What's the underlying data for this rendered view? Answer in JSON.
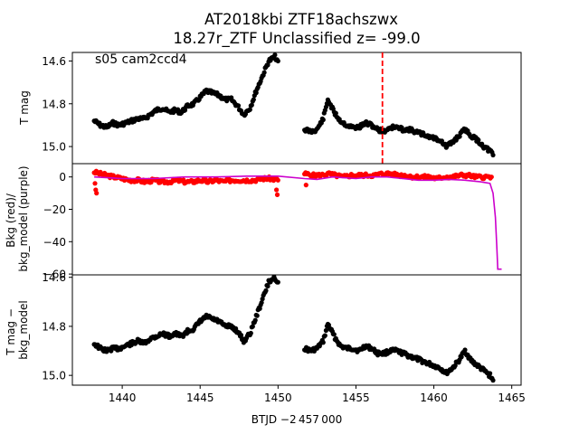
{
  "title_line1": "AT2018kbi  ZTF18achszwx",
  "title_line2": "18.27r_ZTF Unclassified z= -99.0",
  "annotation": "s05 cam2ccd4",
  "xlabel": "BTJD −2 457 000",
  "colors": {
    "points_black": "#000000",
    "points_red": "#ff0000",
    "model_purple": "#cc00cc",
    "marker_red": "#ff0000"
  },
  "chart_data": [
    {
      "type": "scatter",
      "ylabel": "T mag",
      "xlim": [
        1436.8,
        1465.6
      ],
      "ylim": [
        15.08,
        14.56
      ],
      "y_inverted": true,
      "yticks": [
        14.6,
        14.8,
        15.0
      ],
      "ytick_labels": [
        "14.6",
        "14.8",
        "15.0"
      ],
      "vline_x": 1456.7,
      "segment1": [
        [
          1438.2,
          14.88
        ],
        [
          1438.6,
          14.9
        ],
        [
          1439.0,
          14.91
        ],
        [
          1439.4,
          14.89
        ],
        [
          1439.8,
          14.9
        ],
        [
          1440.2,
          14.89
        ],
        [
          1440.6,
          14.88
        ],
        [
          1441.0,
          14.87
        ],
        [
          1441.4,
          14.87
        ],
        [
          1441.8,
          14.85
        ],
        [
          1442.2,
          14.83
        ],
        [
          1442.6,
          14.82
        ],
        [
          1443.0,
          14.84
        ],
        [
          1443.4,
          14.83
        ],
        [
          1443.8,
          14.84
        ],
        [
          1444.2,
          14.81
        ],
        [
          1444.6,
          14.8
        ],
        [
          1445.0,
          14.77
        ],
        [
          1445.4,
          14.74
        ],
        [
          1445.8,
          14.75
        ],
        [
          1446.2,
          14.76
        ],
        [
          1446.6,
          14.78
        ],
        [
          1447.0,
          14.78
        ],
        [
          1447.4,
          14.81
        ],
        [
          1447.8,
          14.85
        ],
        [
          1448.2,
          14.82
        ],
        [
          1448.6,
          14.74
        ],
        [
          1449.0,
          14.67
        ],
        [
          1449.4,
          14.6
        ],
        [
          1449.8,
          14.58
        ],
        [
          1450.0,
          14.6
        ]
      ],
      "segment2": [
        [
          1451.7,
          14.92
        ],
        [
          1452.1,
          14.93
        ],
        [
          1452.5,
          14.92
        ],
        [
          1452.9,
          14.87
        ],
        [
          1453.2,
          14.78
        ],
        [
          1453.6,
          14.84
        ],
        [
          1454.0,
          14.88
        ],
        [
          1454.4,
          14.9
        ],
        [
          1454.8,
          14.91
        ],
        [
          1455.2,
          14.91
        ],
        [
          1455.6,
          14.89
        ],
        [
          1456.0,
          14.9
        ],
        [
          1456.4,
          14.92
        ],
        [
          1456.8,
          14.93
        ],
        [
          1457.2,
          14.91
        ],
        [
          1457.6,
          14.91
        ],
        [
          1458.0,
          14.92
        ],
        [
          1458.4,
          14.92
        ],
        [
          1458.8,
          14.93
        ],
        [
          1459.2,
          14.94
        ],
        [
          1459.6,
          14.95
        ],
        [
          1460.0,
          14.96
        ],
        [
          1460.4,
          14.97
        ],
        [
          1460.8,
          15.0
        ],
        [
          1461.2,
          14.98
        ],
        [
          1461.6,
          14.95
        ],
        [
          1462.0,
          14.92
        ],
        [
          1462.4,
          14.95
        ],
        [
          1462.8,
          14.97
        ],
        [
          1463.2,
          15.0
        ],
        [
          1463.6,
          15.02
        ],
        [
          1463.8,
          15.04
        ]
      ]
    },
    {
      "type": "scatter+line",
      "ylabel": "Bkg (red)/\nbkg_model (purple)",
      "xlim": [
        1436.8,
        1465.6
      ],
      "ylim": [
        -60.5,
        8.2
      ],
      "yticks": [
        0,
        -20,
        -40,
        -60
      ],
      "ytick_labels": [
        "0",
        "−20",
        "−40",
        "−60"
      ],
      "bkg_points": [
        [
          1438.2,
          3
        ],
        [
          1438.6,
          2
        ],
        [
          1439.0,
          1
        ],
        [
          1439.5,
          0
        ],
        [
          1440.0,
          -1
        ],
        [
          1440.5,
          -2
        ],
        [
          1441.0,
          -2
        ],
        [
          1441.5,
          -3
        ],
        [
          1442.0,
          -2
        ],
        [
          1442.5,
          -3
        ],
        [
          1443.0,
          -3
        ],
        [
          1443.5,
          -2
        ],
        [
          1444.0,
          -3
        ],
        [
          1444.5,
          -3
        ],
        [
          1445.0,
          -2
        ],
        [
          1445.5,
          -3
        ],
        [
          1446.0,
          -2
        ],
        [
          1446.5,
          -3
        ],
        [
          1447.0,
          -2
        ],
        [
          1447.5,
          -2
        ],
        [
          1448.0,
          -2
        ],
        [
          1448.5,
          -2
        ],
        [
          1449.0,
          -1
        ],
        [
          1449.5,
          -1
        ],
        [
          1450.0,
          -2
        ],
        [
          1451.7,
          2
        ],
        [
          1452.2,
          1
        ],
        [
          1452.7,
          1
        ],
        [
          1453.2,
          2
        ],
        [
          1453.7,
          1
        ],
        [
          1454.2,
          0
        ],
        [
          1454.7,
          1
        ],
        [
          1455.2,
          1
        ],
        [
          1455.7,
          1
        ],
        [
          1456.2,
          1
        ],
        [
          1456.7,
          2
        ],
        [
          1457.2,
          2
        ],
        [
          1457.7,
          1
        ],
        [
          1458.2,
          1
        ],
        [
          1458.7,
          0
        ],
        [
          1459.2,
          0
        ],
        [
          1459.7,
          0
        ],
        [
          1460.2,
          -1
        ],
        [
          1460.7,
          0
        ],
        [
          1461.2,
          0
        ],
        [
          1461.7,
          1
        ],
        [
          1462.2,
          1
        ],
        [
          1462.7,
          0
        ],
        [
          1463.2,
          0
        ],
        [
          1463.7,
          0
        ]
      ],
      "bkg_outliers": [
        [
          1438.3,
          -8
        ],
        [
          1438.35,
          -10
        ],
        [
          1438.25,
          -4
        ],
        [
          1449.9,
          -8
        ],
        [
          1449.95,
          -11
        ],
        [
          1451.8,
          -5
        ]
      ],
      "model_line": [
        [
          1438.2,
          0
        ],
        [
          1440,
          -1
        ],
        [
          1442,
          -1
        ],
        [
          1444,
          0
        ],
        [
          1446,
          0
        ],
        [
          1448,
          0.5
        ],
        [
          1450,
          0.5
        ],
        [
          1451.7,
          -1
        ],
        [
          1452.5,
          -1.5
        ],
        [
          1453.5,
          0
        ],
        [
          1455,
          -1
        ],
        [
          1456,
          0
        ],
        [
          1457,
          0
        ],
        [
          1458,
          -1
        ],
        [
          1459,
          -2
        ],
        [
          1460,
          -2
        ],
        [
          1461,
          -1.5
        ],
        [
          1462,
          -2
        ],
        [
          1463,
          -3
        ],
        [
          1463.6,
          -4
        ],
        [
          1463.8,
          -10
        ],
        [
          1463.95,
          -25
        ],
        [
          1464.05,
          -45
        ],
        [
          1464.1,
          -57
        ],
        [
          1464.35,
          -57
        ]
      ]
    },
    {
      "type": "scatter",
      "ylabel": "T mag −\nbkg_model",
      "xlim": [
        1436.8,
        1465.6
      ],
      "ylim": [
        15.04,
        14.59
      ],
      "y_inverted": true,
      "yticks": [
        14.6,
        14.8,
        15.0
      ],
      "ytick_labels": [
        "14.6",
        "14.8",
        "15.0"
      ],
      "xticks": [
        1440,
        1445,
        1450,
        1455,
        1460,
        1465
      ],
      "xtick_labels": [
        "1440",
        "1445",
        "1450",
        "1455",
        "1460",
        "1465"
      ],
      "segment1": [
        [
          1438.2,
          14.87
        ],
        [
          1438.6,
          14.89
        ],
        [
          1439.0,
          14.9
        ],
        [
          1439.4,
          14.89
        ],
        [
          1439.8,
          14.89
        ],
        [
          1440.2,
          14.88
        ],
        [
          1440.6,
          14.87
        ],
        [
          1441.0,
          14.86
        ],
        [
          1441.4,
          14.87
        ],
        [
          1441.8,
          14.85
        ],
        [
          1442.2,
          14.84
        ],
        [
          1442.6,
          14.83
        ],
        [
          1443.0,
          14.84
        ],
        [
          1443.4,
          14.83
        ],
        [
          1443.8,
          14.84
        ],
        [
          1444.2,
          14.82
        ],
        [
          1444.6,
          14.81
        ],
        [
          1445.0,
          14.78
        ],
        [
          1445.4,
          14.76
        ],
        [
          1445.8,
          14.77
        ],
        [
          1446.2,
          14.78
        ],
        [
          1446.6,
          14.8
        ],
        [
          1447.0,
          14.8
        ],
        [
          1447.4,
          14.82
        ],
        [
          1447.8,
          14.86
        ],
        [
          1448.2,
          14.83
        ],
        [
          1448.6,
          14.76
        ],
        [
          1449.0,
          14.69
        ],
        [
          1449.4,
          14.62
        ],
        [
          1449.8,
          14.6
        ],
        [
          1450.0,
          14.62
        ]
      ],
      "segment2": [
        [
          1451.7,
          14.89
        ],
        [
          1452.1,
          14.9
        ],
        [
          1452.5,
          14.89
        ],
        [
          1452.9,
          14.86
        ],
        [
          1453.2,
          14.79
        ],
        [
          1453.6,
          14.84
        ],
        [
          1454.0,
          14.88
        ],
        [
          1454.4,
          14.89
        ],
        [
          1454.8,
          14.89
        ],
        [
          1455.2,
          14.9
        ],
        [
          1455.6,
          14.88
        ],
        [
          1456.0,
          14.89
        ],
        [
          1456.4,
          14.91
        ],
        [
          1456.8,
          14.91
        ],
        [
          1457.2,
          14.9
        ],
        [
          1457.6,
          14.9
        ],
        [
          1458.0,
          14.91
        ],
        [
          1458.4,
          14.92
        ],
        [
          1458.8,
          14.93
        ],
        [
          1459.2,
          14.94
        ],
        [
          1459.6,
          14.95
        ],
        [
          1460.0,
          14.96
        ],
        [
          1460.4,
          14.97
        ],
        [
          1460.8,
          14.99
        ],
        [
          1461.2,
          14.97
        ],
        [
          1461.6,
          14.94
        ],
        [
          1462.0,
          14.9
        ],
        [
          1462.4,
          14.94
        ],
        [
          1462.8,
          14.96
        ],
        [
          1463.2,
          14.98
        ],
        [
          1463.6,
          15.0
        ],
        [
          1463.8,
          15.02
        ]
      ]
    }
  ]
}
